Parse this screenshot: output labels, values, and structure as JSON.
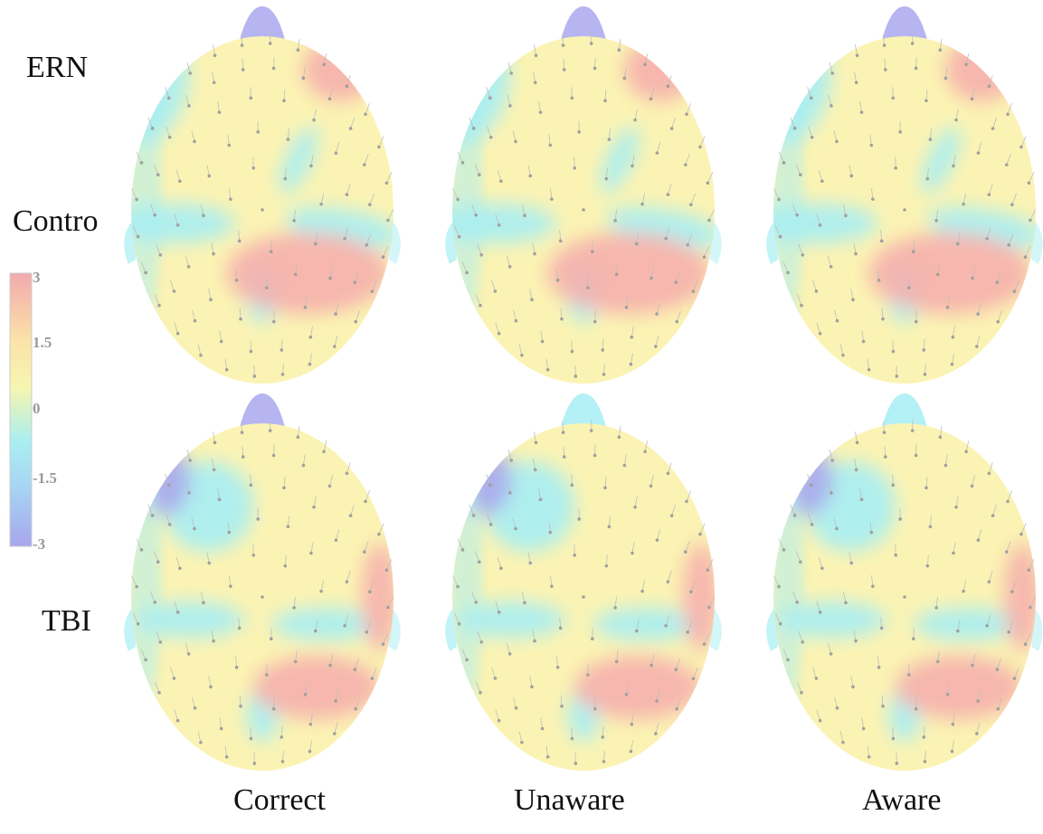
{
  "figure": {
    "ern_label": "ERN",
    "rows": [
      "Contro",
      "TBI"
    ],
    "columns": [
      "Correct",
      "Unaware",
      "Aware"
    ]
  },
  "colorbar": {
    "ticks": [
      "3",
      "1.5",
      "0",
      "-1.5",
      "-3"
    ],
    "range": [
      -3,
      3
    ],
    "colors": {
      "neg3": "#a7a6ec",
      "neg15": "#a6e4f1",
      "zero": "#d6f2c8",
      "pos15": "#fbf0a6",
      "pos3": "#f2aaae"
    }
  },
  "colors": {
    "scalp_base": "#fbf3b3",
    "blue": "#a7eef4",
    "purple": "#a9a8ee",
    "red": "#f6b0ad",
    "electrode": "#a0a0a0"
  }
}
